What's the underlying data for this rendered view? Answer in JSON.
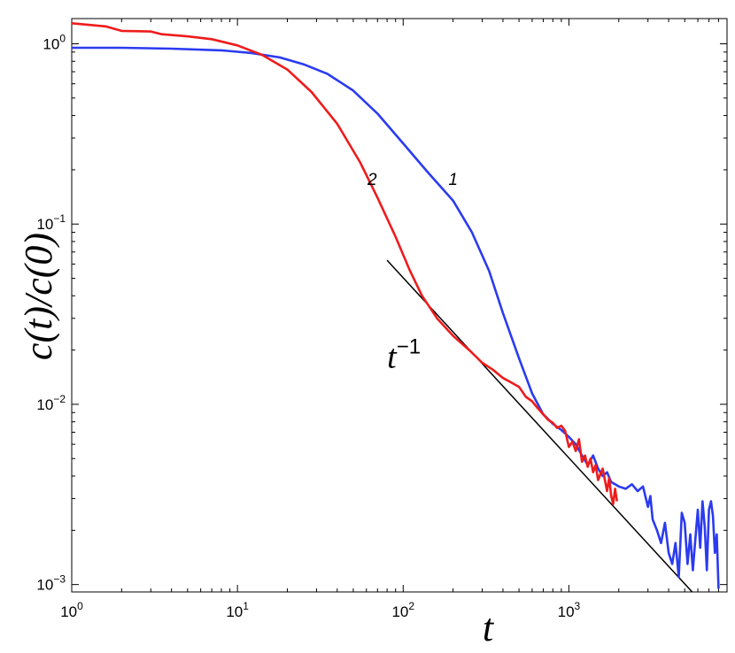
{
  "chart_data": {
    "type": "line",
    "xscale": "log",
    "yscale": "log",
    "xlim": [
      1,
      9000
    ],
    "ylim": [
      0.00091,
      1.38
    ],
    "grid": false,
    "xlabel": "t",
    "ylabel": "c(t)/c(0)",
    "xticks": [
      {
        "value": 1,
        "base": "10",
        "exp": "0"
      },
      {
        "value": 10,
        "base": "10",
        "exp": "1"
      },
      {
        "value": 100,
        "base": "10",
        "exp": "2"
      },
      {
        "value": 1000,
        "base": "10",
        "exp": "3"
      }
    ],
    "yticks": [
      {
        "value": 0.001,
        "base": "10",
        "exp": "−3"
      },
      {
        "value": 0.01,
        "base": "10",
        "exp": "−2"
      },
      {
        "value": 0.1,
        "base": "10",
        "exp": "−1"
      },
      {
        "value": 1,
        "base": "10",
        "exp": "0"
      }
    ],
    "series": [
      {
        "name": "1",
        "color": "#2b3bf0",
        "label_at": [
          200,
          0.165
        ],
        "points": [
          [
            1,
            0.95
          ],
          [
            2,
            0.95
          ],
          [
            4,
            0.94
          ],
          [
            8,
            0.92
          ],
          [
            12,
            0.89
          ],
          [
            18,
            0.84
          ],
          [
            25,
            0.77
          ],
          [
            35,
            0.68
          ],
          [
            50,
            0.55
          ],
          [
            70,
            0.41
          ],
          [
            100,
            0.28
          ],
          [
            140,
            0.195
          ],
          [
            200,
            0.135
          ],
          [
            260,
            0.09
          ],
          [
            330,
            0.055
          ],
          [
            400,
            0.032
          ],
          [
            500,
            0.018
          ],
          [
            600,
            0.0115
          ],
          [
            700,
            0.0088
          ],
          [
            800,
            0.0078
          ],
          [
            900,
            0.0072
          ],
          [
            1000,
            0.0066
          ],
          [
            1100,
            0.006
          ],
          [
            1200,
            0.0052
          ],
          [
            1300,
            0.0046
          ],
          [
            1400,
            0.0052
          ],
          [
            1500,
            0.0044
          ],
          [
            1600,
            0.004
          ],
          [
            1700,
            0.0042
          ],
          [
            1800,
            0.0037
          ],
          [
            1900,
            0.0036
          ],
          [
            2000,
            0.0035
          ],
          [
            2200,
            0.0034
          ],
          [
            2400,
            0.0036
          ],
          [
            2600,
            0.0033
          ],
          [
            2800,
            0.0035
          ],
          [
            3000,
            0.0027
          ],
          [
            3100,
            0.0031
          ],
          [
            3200,
            0.0023
          ],
          [
            3400,
            0.002
          ],
          [
            3600,
            0.0017
          ],
          [
            3800,
            0.0022
          ],
          [
            4000,
            0.0015
          ],
          [
            4200,
            0.0013
          ],
          [
            4400,
            0.0017
          ],
          [
            4600,
            0.0011
          ],
          [
            4800,
            0.0025
          ],
          [
            5000,
            0.0022
          ],
          [
            5200,
            0.0013
          ],
          [
            5400,
            0.0019
          ],
          [
            5600,
            0.0012
          ],
          [
            5800,
            0.0018
          ],
          [
            6000,
            0.0026
          ],
          [
            6200,
            0.0016
          ],
          [
            6400,
            0.0029
          ],
          [
            6600,
            0.0021
          ],
          [
            6800,
            0.0012
          ],
          [
            7000,
            0.0026
          ],
          [
            7200,
            0.0029
          ],
          [
            7400,
            0.0024
          ],
          [
            7600,
            0.0015
          ],
          [
            7800,
            0.0019
          ],
          [
            8000,
            0.00095
          ]
        ]
      },
      {
        "name": "2",
        "color": "#ee1c1c",
        "label_at": [
          65,
          0.165
        ],
        "points": [
          [
            1,
            1.3
          ],
          [
            1.6,
            1.25
          ],
          [
            2,
            1.18
          ],
          [
            3,
            1.17
          ],
          [
            3.5,
            1.13
          ],
          [
            5,
            1.1
          ],
          [
            7,
            1.06
          ],
          [
            10,
            0.98
          ],
          [
            14,
            0.87
          ],
          [
            20,
            0.72
          ],
          [
            28,
            0.54
          ],
          [
            40,
            0.36
          ],
          [
            55,
            0.22
          ],
          [
            70,
            0.14
          ],
          [
            90,
            0.085
          ],
          [
            110,
            0.055
          ],
          [
            130,
            0.04
          ],
          [
            160,
            0.03
          ],
          [
            200,
            0.024
          ],
          [
            250,
            0.02
          ],
          [
            300,
            0.017
          ],
          [
            350,
            0.0155
          ],
          [
            400,
            0.014
          ],
          [
            450,
            0.0132
          ],
          [
            500,
            0.0125
          ],
          [
            550,
            0.011
          ],
          [
            600,
            0.0104
          ],
          [
            650,
            0.0095
          ],
          [
            700,
            0.0088
          ],
          [
            750,
            0.0082
          ],
          [
            800,
            0.0079
          ],
          [
            850,
            0.0074
          ],
          [
            900,
            0.0076
          ],
          [
            950,
            0.0071
          ],
          [
            1000,
            0.0058
          ],
          [
            1050,
            0.0062
          ],
          [
            1100,
            0.0055
          ],
          [
            1150,
            0.0064
          ],
          [
            1200,
            0.0048
          ],
          [
            1250,
            0.0052
          ],
          [
            1300,
            0.0045
          ],
          [
            1350,
            0.005
          ],
          [
            1400,
            0.0042
          ],
          [
            1450,
            0.0046
          ],
          [
            1500,
            0.0038
          ],
          [
            1600,
            0.0044
          ],
          [
            1700,
            0.0033
          ],
          [
            1750,
            0.0039
          ],
          [
            1800,
            0.0031
          ],
          [
            1850,
            0.0028
          ],
          [
            1900,
            0.0034
          ],
          [
            1950,
            0.0029
          ]
        ]
      }
    ],
    "reference_line": {
      "label": "t",
      "label_exp": "−1",
      "color": "#000000",
      "label_at": [
        80,
        0.016
      ],
      "points": [
        [
          80,
          0.063
        ],
        [
          5800,
          0.00087
        ]
      ]
    }
  }
}
